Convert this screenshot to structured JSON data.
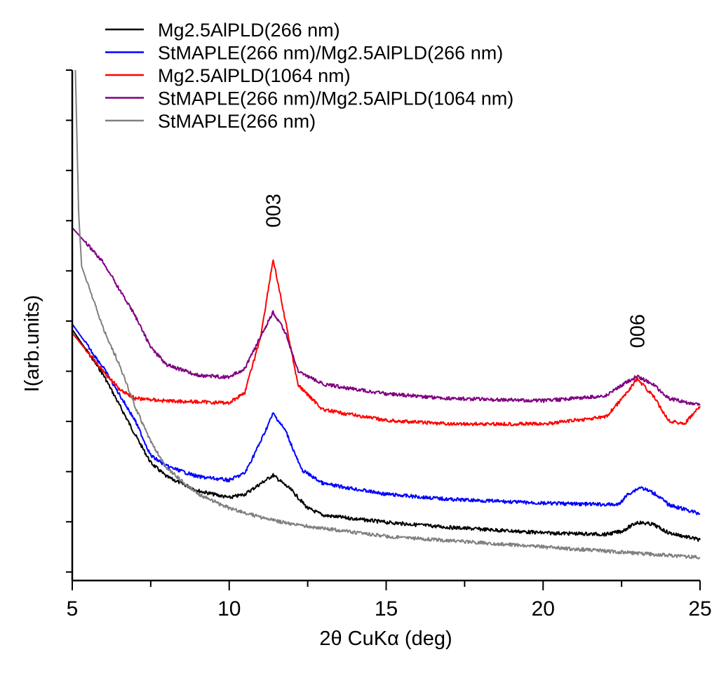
{
  "chart_data": {
    "type": "line",
    "title": "",
    "xlabel": "2θ CuKα (deg)",
    "ylabel": "I(arb.units)",
    "xlim": [
      5,
      25
    ],
    "ylim": [
      -0.17,
      10
    ],
    "x_ticks": [
      5,
      10,
      15,
      20,
      25
    ],
    "x_tick_labels": [
      "5",
      "10",
      "15",
      "20",
      "25"
    ],
    "y_tick_labels_shown": false,
    "grid": false,
    "legend_placement": "top-left",
    "annotations": [
      {
        "text": "003",
        "x": 11.4,
        "y": 7.2
      },
      {
        "text": "006",
        "x": 23.0,
        "y": 4.8
      }
    ],
    "series": [
      {
        "name": "Mg2.5AlPLD(266 nm)",
        "color": "#000000",
        "points": [
          [
            5,
            4.83
          ],
          [
            6,
            3.92
          ],
          [
            7,
            2.74
          ],
          [
            7.5,
            2.18
          ],
          [
            8,
            1.9
          ],
          [
            9,
            1.62
          ],
          [
            10,
            1.48
          ],
          [
            10.5,
            1.55
          ],
          [
            11,
            1.76
          ],
          [
            11.4,
            1.93
          ],
          [
            12,
            1.62
          ],
          [
            12.5,
            1.27
          ],
          [
            13,
            1.13
          ],
          [
            15,
            0.99
          ],
          [
            17,
            0.89
          ],
          [
            20,
            0.78
          ],
          [
            22,
            0.75
          ],
          [
            22.5,
            0.81
          ],
          [
            23,
            0.99
          ],
          [
            23.5,
            0.95
          ],
          [
            24,
            0.78
          ],
          [
            25,
            0.64
          ]
        ]
      },
      {
        "name": "StMAPLE(266 nm)/Mg2.5AlPLD(266 nm)",
        "color": "#0000ff",
        "points": [
          [
            5,
            4.94
          ],
          [
            6,
            4.06
          ],
          [
            7,
            3.02
          ],
          [
            7.5,
            2.32
          ],
          [
            8,
            2.11
          ],
          [
            9,
            1.9
          ],
          [
            10,
            1.83
          ],
          [
            10.5,
            1.97
          ],
          [
            11,
            2.6
          ],
          [
            11.4,
            3.16
          ],
          [
            11.8,
            2.81
          ],
          [
            12.3,
            2.04
          ],
          [
            13,
            1.76
          ],
          [
            15,
            1.55
          ],
          [
            17,
            1.45
          ],
          [
            20,
            1.37
          ],
          [
            22.4,
            1.34
          ],
          [
            22.7,
            1.55
          ],
          [
            23.1,
            1.69
          ],
          [
            23.6,
            1.55
          ],
          [
            24,
            1.34
          ],
          [
            25,
            1.16
          ]
        ]
      },
      {
        "name": "Mg2.5AlPLD(1064 nm)",
        "color": "#ff0000",
        "points": [
          [
            5,
            4.76
          ],
          [
            6,
            3.99
          ],
          [
            6.5,
            3.65
          ],
          [
            7,
            3.46
          ],
          [
            8,
            3.41
          ],
          [
            10,
            3.37
          ],
          [
            10.5,
            3.58
          ],
          [
            11,
            4.69
          ],
          [
            11.4,
            6.23
          ],
          [
            11.8,
            4.97
          ],
          [
            12.2,
            3.72
          ],
          [
            13,
            3.23
          ],
          [
            15,
            3.02
          ],
          [
            17,
            2.95
          ],
          [
            20,
            2.95
          ],
          [
            22,
            3.09
          ],
          [
            22.5,
            3.44
          ],
          [
            23,
            3.85
          ],
          [
            23.5,
            3.51
          ],
          [
            24,
            3.02
          ],
          [
            24.5,
            2.95
          ],
          [
            25,
            3.3
          ]
        ]
      },
      {
        "name": "StMAPLE(266 nm)/Mg2.5AlPLD(1064 nm)",
        "color": "#800080",
        "points": [
          [
            5,
            6.86
          ],
          [
            6,
            6.16
          ],
          [
            7,
            5.11
          ],
          [
            7.5,
            4.48
          ],
          [
            8,
            4.13
          ],
          [
            9,
            3.92
          ],
          [
            10,
            3.88
          ],
          [
            10.5,
            4.06
          ],
          [
            11,
            4.69
          ],
          [
            11.4,
            5.18
          ],
          [
            11.8,
            4.76
          ],
          [
            12.2,
            3.99
          ],
          [
            13,
            3.74
          ],
          [
            15,
            3.55
          ],
          [
            17,
            3.46
          ],
          [
            20,
            3.41
          ],
          [
            22,
            3.51
          ],
          [
            22.5,
            3.72
          ],
          [
            23,
            3.9
          ],
          [
            23.5,
            3.74
          ],
          [
            24,
            3.46
          ],
          [
            25,
            3.32
          ]
        ]
      },
      {
        "name": "StMAPLE(266 nm)",
        "color": "#808080",
        "points": [
          [
            5.1,
            10
          ],
          [
            5.2,
            7.2
          ],
          [
            5.3,
            6.09
          ],
          [
            6,
            4.83
          ],
          [
            6.5,
            4.13
          ],
          [
            7,
            3.3
          ],
          [
            7.5,
            2.6
          ],
          [
            8,
            2.07
          ],
          [
            9,
            1.55
          ],
          [
            10,
            1.27
          ],
          [
            11,
            1.09
          ],
          [
            12,
            0.95
          ],
          [
            15,
            0.71
          ],
          [
            20,
            0.5
          ],
          [
            25,
            0.29
          ]
        ]
      }
    ]
  }
}
